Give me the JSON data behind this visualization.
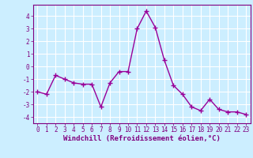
{
  "x": [
    0,
    1,
    2,
    3,
    4,
    5,
    6,
    7,
    8,
    9,
    10,
    11,
    12,
    13,
    14,
    15,
    16,
    17,
    18,
    19,
    20,
    21,
    22,
    23
  ],
  "y": [
    -2.0,
    -2.2,
    -0.7,
    -1.0,
    -1.3,
    -1.4,
    -1.4,
    -3.2,
    -1.3,
    -0.4,
    -0.4,
    3.0,
    4.4,
    3.1,
    0.5,
    -1.5,
    -2.2,
    -3.2,
    -3.5,
    -2.6,
    -3.4,
    -3.6,
    -3.6,
    -3.8
  ],
  "line_color": "#990099",
  "marker": "+",
  "marker_size": 4,
  "xlabel": "Windchill (Refroidissement éolien,°C)",
  "xlabel_fontsize": 6.5,
  "bg_color": "#cceeff",
  "grid_color": "#ffffff",
  "ylim": [
    -4.5,
    4.9
  ],
  "xlim": [
    -0.5,
    23.5
  ],
  "yticks": [
    -4,
    -3,
    -2,
    -1,
    0,
    1,
    2,
    3,
    4
  ],
  "xticks": [
    0,
    1,
    2,
    3,
    4,
    5,
    6,
    7,
    8,
    9,
    10,
    11,
    12,
    13,
    14,
    15,
    16,
    17,
    18,
    19,
    20,
    21,
    22,
    23
  ],
  "tick_fontsize": 5.5,
  "spine_color": "#800080",
  "tick_color": "#800080",
  "label_color": "#800080"
}
